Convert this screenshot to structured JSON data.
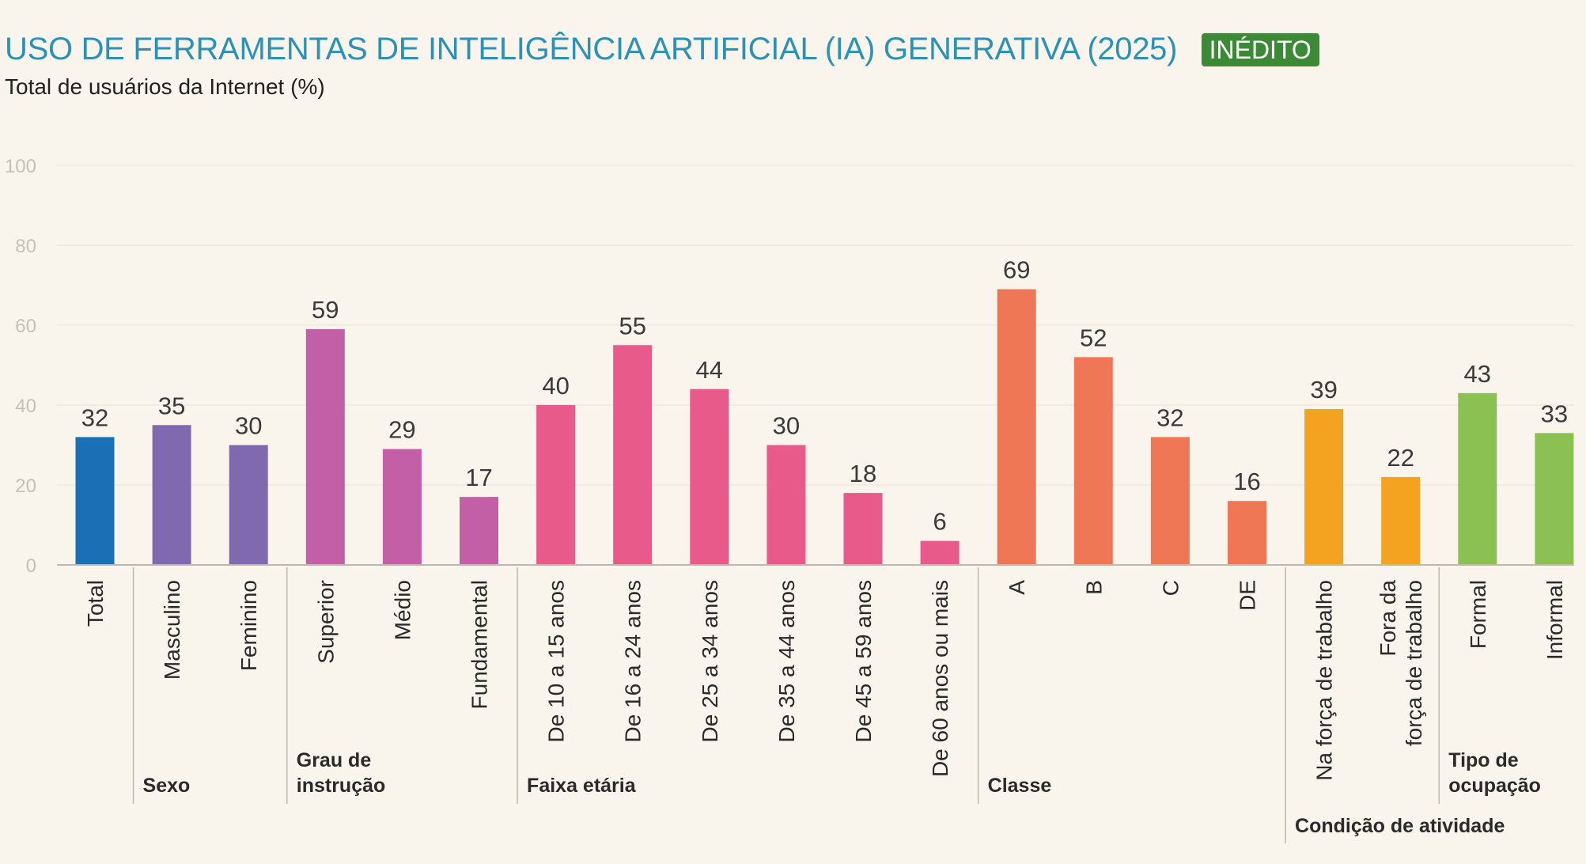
{
  "header": {
    "title": "USO DE FERRAMENTAS DE INTELIGÊNCIA ARTIFICIAL (IA) GENERATIVA (2025)",
    "badge": "INÉDITO",
    "subtitle": "Total de usuários da Internet (%)"
  },
  "colors": {
    "background": "#f9f5ec",
    "title": "#2b92b6",
    "badge_bg": "#3b8a36",
    "grid": "#eee9dc",
    "axis": "#bdb8ad",
    "tick_text": "#c4c0b6",
    "value_text": "#3a3a3a",
    "label_text": "#2a2a2a"
  },
  "chart_data": {
    "type": "bar",
    "title": "USO DE FERRAMENTAS DE INTELIGÊNCIA ARTIFICIAL (IA) GENERATIVA (2025)",
    "ylabel": "Total de usuários da Internet (%)",
    "xlabel": "",
    "ylim": [
      0,
      100
    ],
    "yticks": [
      0,
      20,
      40,
      60,
      80,
      100
    ],
    "grid": true,
    "categories": [
      "Total",
      "Masculino",
      "Feminino",
      "Superior",
      "Médio",
      "Fundamental",
      "De 10 a 15 anos",
      "De 16 a 24 anos",
      "De 25 a 34 anos",
      "De 35 a 44 anos",
      "De 45 a 59 anos",
      "De 60 anos ou mais",
      "A",
      "B",
      "C",
      "DE",
      "Na força de trabalho",
      "Fora da força de trabalho",
      "Formal",
      "Informal"
    ],
    "label_lines": [
      [
        "Total"
      ],
      [
        "Masculino"
      ],
      [
        "Feminino"
      ],
      [
        "Superior"
      ],
      [
        "Médio"
      ],
      [
        "Fundamental"
      ],
      [
        "De 10 a 15 anos"
      ],
      [
        "De 16 a 24 anos"
      ],
      [
        "De 25 a 34 anos"
      ],
      [
        "De 35 a 44 anos"
      ],
      [
        "De 45 a 59 anos"
      ],
      [
        "De 60 anos ou mais"
      ],
      [
        "A"
      ],
      [
        "B"
      ],
      [
        "C"
      ],
      [
        "DE"
      ],
      [
        "Na força de trabalho"
      ],
      [
        "Fora da",
        "força de trabalho"
      ],
      [
        "Formal"
      ],
      [
        "Informal"
      ]
    ],
    "values": [
      32,
      35,
      30,
      59,
      29,
      17,
      40,
      55,
      44,
      30,
      18,
      6,
      69,
      52,
      32,
      16,
      39,
      22,
      43,
      33
    ],
    "bar_colors": [
      "#1a6fb5",
      "#8169b0",
      "#8169b0",
      "#c25fa6",
      "#c25fa6",
      "#c25fa6",
      "#e85a89",
      "#e85a89",
      "#e85a89",
      "#e85a89",
      "#e85a89",
      "#e85a89",
      "#ef7755",
      "#ef7755",
      "#ef7755",
      "#ef7755",
      "#f4a321",
      "#f4a321",
      "#8bc153",
      "#8bc153"
    ],
    "groups": [
      {
        "label_lines": [
          "Sexo"
        ],
        "start": 1,
        "end": 2
      },
      {
        "label_lines": [
          "Grau de",
          "instrução"
        ],
        "start": 3,
        "end": 5
      },
      {
        "label_lines": [
          "Faixa etária"
        ],
        "start": 6,
        "end": 11
      },
      {
        "label_lines": [
          "Classe"
        ],
        "start": 12,
        "end": 15
      },
      {
        "label_lines": [
          "Tipo de",
          "ocupação"
        ],
        "start": 18,
        "end": 19
      },
      {
        "label_lines": [
          "Condição de atividade"
        ],
        "start": 16,
        "end": 19
      }
    ]
  }
}
